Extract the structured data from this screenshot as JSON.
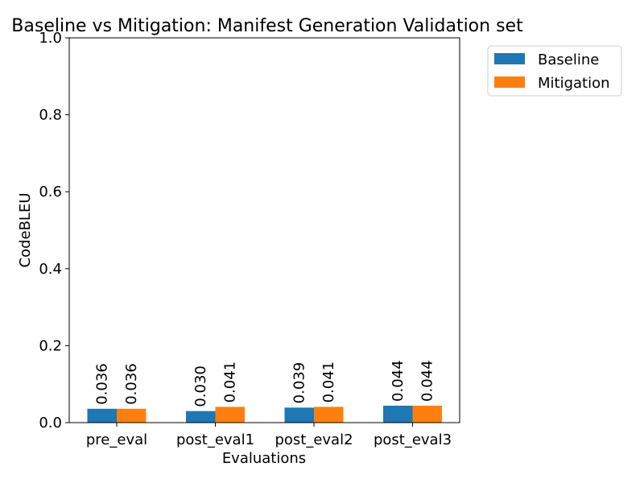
{
  "chart_data": {
    "type": "bar",
    "title": "Baseline vs Mitigation: Manifest Generation Validation set",
    "xlabel": "Evaluations",
    "ylabel": "CodeBLEU",
    "categories": [
      "pre_eval",
      "post_eval1",
      "post_eval2",
      "post_eval3"
    ],
    "series": [
      {
        "name": "Baseline",
        "values": [
          0.036,
          0.03,
          0.039,
          0.044
        ],
        "color": "#1f77b4",
        "labels": [
          "0.036",
          "0.030",
          "0.039",
          "0.044"
        ]
      },
      {
        "name": "Mitigation",
        "values": [
          0.036,
          0.041,
          0.041,
          0.044
        ],
        "color": "#ff7f0e",
        "labels": [
          "0.036",
          "0.041",
          "0.041",
          "0.044"
        ]
      }
    ],
    "ylim": [
      0,
      1.0
    ],
    "yticks": [
      0.0,
      0.2,
      0.4,
      0.6,
      0.8,
      1.0
    ],
    "ytick_labels": [
      "0.0",
      "0.2",
      "0.4",
      "0.6",
      "0.8",
      "1.0"
    ],
    "grid": false,
    "legend_position": "outside-top-right"
  }
}
